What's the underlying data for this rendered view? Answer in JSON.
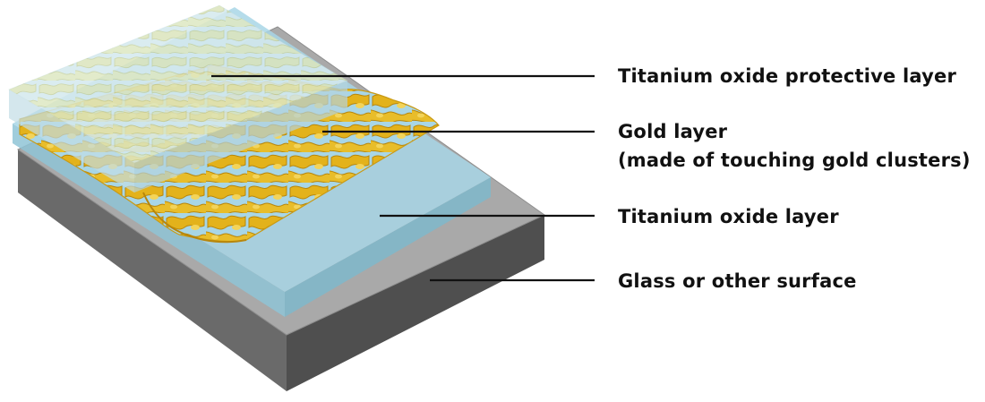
{
  "labels": {
    "protective": "Titanium oxide protective layer",
    "gold_line1": "Gold layer",
    "gold_line2": "(made of touching gold clusters)",
    "titanium": "Titanium oxide layer",
    "glass": "Glass or other surface"
  },
  "colors": {
    "glass_top": "#a9a9a9",
    "glass_front": "#6a6a6a",
    "glass_side": "#4f4f4f",
    "titanium_layer": "#a8d6e6",
    "gold": "#e3b21b",
    "gold_dark": "#b8860b",
    "protective_layer": "#d8ecf3",
    "leader_line": "#111111"
  }
}
